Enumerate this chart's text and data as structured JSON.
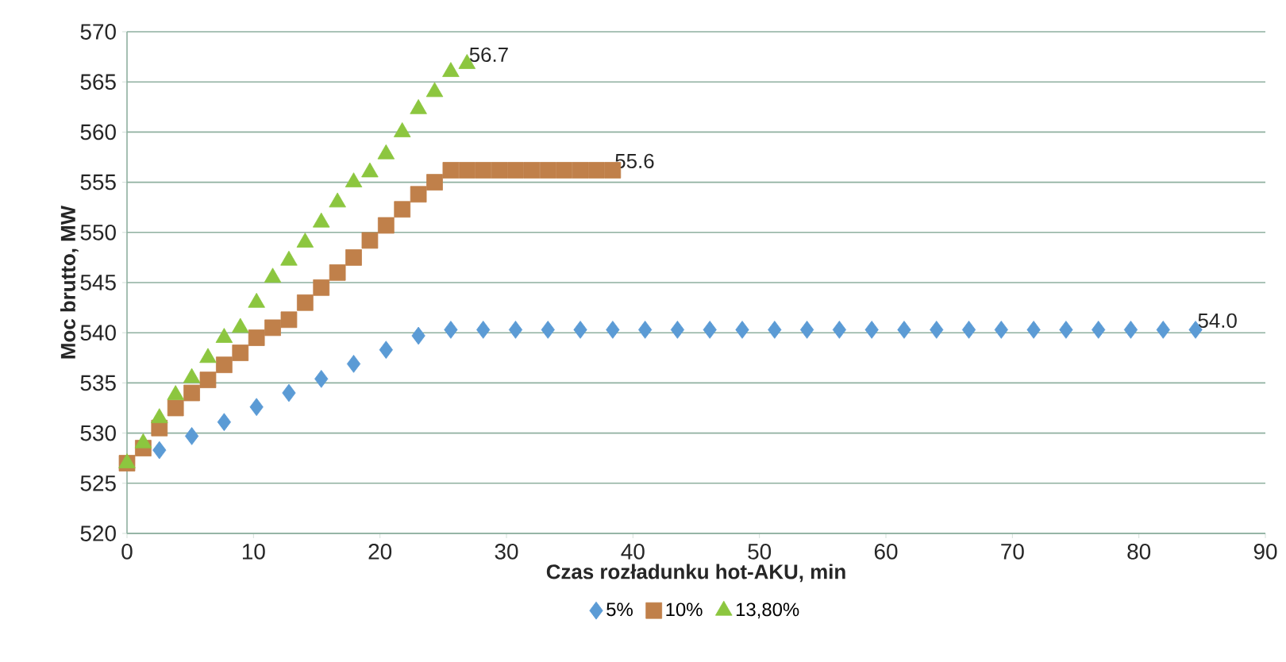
{
  "chart_data": {
    "type": "scatter",
    "xlabel": "Czas rozładunku hot-AKU, min",
    "ylabel": "Moc brutto, MW",
    "xlim": [
      0,
      90
    ],
    "xticks": [
      0,
      10,
      20,
      30,
      40,
      50,
      60,
      70,
      80,
      90
    ],
    "ylim": [
      520,
      570
    ],
    "yticks": [
      520,
      525,
      530,
      535,
      540,
      545,
      550,
      555,
      560,
      565,
      570
    ],
    "grid": "y",
    "legend": "bottom",
    "series": [
      {
        "name": "5%",
        "color": "#5b9bd5",
        "marker": "diamond",
        "x": [
          2.56,
          5.12,
          7.68,
          10.24,
          12.8,
          15.36,
          17.92,
          20.48,
          23.04,
          25.6,
          28.16,
          30.72,
          33.28,
          35.84,
          38.4,
          40.96,
          43.52,
          46.08,
          48.64,
          51.2,
          53.76,
          56.32,
          58.88,
          61.44,
          64,
          66.56,
          69.12,
          71.68,
          74.24,
          76.8,
          79.36,
          81.92,
          84.48
        ],
        "values": [
          528.3,
          529.7,
          531.1,
          532.6,
          534,
          535.4,
          536.9,
          538.3,
          539.7,
          540.3,
          540.3,
          540.3,
          540.3,
          540.3,
          540.3,
          540.3,
          540.3,
          540.3,
          540.3,
          540.3,
          540.3,
          540.3,
          540.3,
          540.3,
          540.3,
          540.3,
          540.3,
          540.3,
          540.3,
          540.3,
          540.3,
          540.3,
          540.3
        ]
      },
      {
        "name": "10%",
        "color": "#c0804a",
        "marker": "square",
        "x": [
          0,
          1.28,
          2.56,
          3.84,
          5.12,
          6.4,
          7.68,
          8.96,
          10.24,
          11.52,
          12.8,
          14.08,
          15.36,
          16.64,
          17.92,
          19.2,
          20.48,
          21.76,
          23.04,
          24.32,
          25.6,
          26.88,
          28.16,
          29.44,
          30.72,
          32,
          33.28,
          34.56,
          35.84,
          37.12,
          38.4
        ],
        "values": [
          527,
          528.5,
          530.5,
          532.5,
          534,
          535.3,
          536.8,
          538,
          539.5,
          540.5,
          541.3,
          543,
          544.5,
          546,
          547.5,
          549.2,
          550.7,
          552.3,
          553.8,
          555,
          556.2,
          556.2,
          556.2,
          556.2,
          556.2,
          556.2,
          556.2,
          556.2,
          556.2,
          556.2,
          556.2
        ]
      },
      {
        "name": "13,80%",
        "color": "#8cc63f",
        "marker": "triangle",
        "x": [
          0,
          1.28,
          2.56,
          3.84,
          5.12,
          6.4,
          7.68,
          8.96,
          10.24,
          11.52,
          12.8,
          14.08,
          15.36,
          16.64,
          17.92,
          19.2,
          20.48,
          21.76,
          23.04,
          24.32,
          25.6,
          26.88
        ],
        "values": [
          527,
          529,
          531.5,
          533.8,
          535.5,
          537.5,
          539.5,
          540.5,
          543,
          545.5,
          547.2,
          549,
          551,
          553,
          555,
          556,
          557.8,
          560,
          562.3,
          564,
          566,
          566.8
        ]
      }
    ],
    "annotations": [
      {
        "text": "54.0",
        "x": 84.48,
        "y": 540.3
      },
      {
        "text": "55.6",
        "x": 38.4,
        "y": 556.2
      },
      {
        "text": "56.7",
        "x": 26.88,
        "y": 566.8
      }
    ]
  }
}
